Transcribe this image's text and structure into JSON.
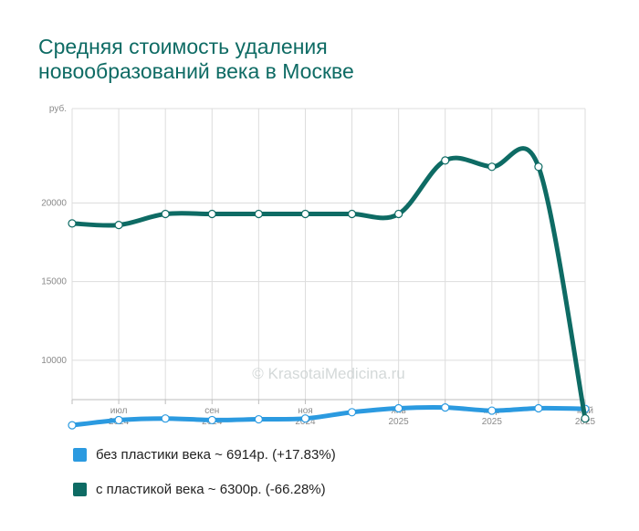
{
  "chart_data": {
    "type": "line",
    "title_line1": "Средняя стоимость удаления",
    "title_line2": "новообразований века в Москве",
    "y_unit": "руб.",
    "ylim": [
      7500,
      26000
    ],
    "y_ticks": [
      "10000",
      "15000",
      "20000"
    ],
    "y_tick_values": [
      10000,
      15000,
      20000
    ],
    "x_ticks": [
      {
        "month": "июл",
        "year": "2024",
        "index": 1
      },
      {
        "month": "сен",
        "year": "2024",
        "index": 3
      },
      {
        "month": "ноя",
        "year": "2024",
        "index": 5
      },
      {
        "month": "янв",
        "year": "2025",
        "index": 7
      },
      {
        "month": "мар",
        "year": "2025",
        "index": 9
      },
      {
        "month": "май",
        "year": "2025",
        "index": 11
      }
    ],
    "x_count": 12,
    "watermark": "© KrasotaiMedicina.ru",
    "series": [
      {
        "name": "без пластики века",
        "legend": "без пластики века ~ 6914р. (+17.83%)",
        "color": "#2b9ae0",
        "values": [
          5870,
          6200,
          6300,
          6200,
          6250,
          6300,
          6700,
          6950,
          7000,
          6800,
          6950,
          6914
        ]
      },
      {
        "name": "с пластикой века",
        "legend": "с пластикой века ~ 6300р. (-66.28%)",
        "color": "#0e6b64",
        "values": [
          18700,
          18600,
          19300,
          19300,
          19300,
          19300,
          19300,
          19300,
          22700,
          22300,
          22300,
          6300
        ]
      }
    ],
    "grid": true
  }
}
